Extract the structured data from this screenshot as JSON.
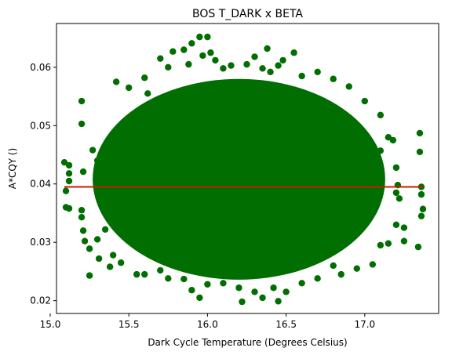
{
  "chart_data": {
    "type": "scatter",
    "title": "BOS T_DARK x BETA",
    "xlabel": "Dark Cycle Temperature (Degrees Celsius)",
    "ylabel": "A*CQY ()",
    "xlim": [
      15.04,
      17.47
    ],
    "ylim": [
      0.0178,
      0.0675
    ],
    "x_ticks": [
      15.0,
      15.5,
      16.0,
      16.5,
      17.0
    ],
    "x_tick_labels": [
      "15.0",
      "15.5",
      "16.0",
      "16.5",
      "17.0"
    ],
    "y_ticks": [
      0.02,
      0.03,
      0.04,
      0.05,
      0.06
    ],
    "y_tick_labels": [
      "0.02",
      "0.03",
      "0.04",
      "0.05",
      "0.06"
    ],
    "grid": false,
    "series": [
      {
        "kind": "points",
        "color": "#006e00",
        "points": [
          [
            15.09,
            0.0437
          ],
          [
            15.1,
            0.0388
          ],
          [
            15.1,
            0.036
          ],
          [
            15.12,
            0.0358
          ],
          [
            15.12,
            0.0432
          ],
          [
            15.12,
            0.0418
          ],
          [
            15.12,
            0.0405
          ],
          [
            15.2,
            0.0542
          ],
          [
            15.2,
            0.0503
          ],
          [
            15.21,
            0.0421
          ],
          [
            15.2,
            0.0355
          ],
          [
            15.2,
            0.0343
          ],
          [
            15.21,
            0.032
          ],
          [
            15.22,
            0.0302
          ],
          [
            15.25,
            0.0289
          ],
          [
            15.25,
            0.0243
          ],
          [
            15.27,
            0.0458
          ],
          [
            15.3,
            0.044
          ],
          [
            15.31,
            0.0272
          ],
          [
            15.35,
            0.0465
          ],
          [
            15.38,
            0.0258
          ],
          [
            15.42,
            0.0575
          ],
          [
            15.45,
            0.0485
          ],
          [
            15.5,
            0.0565
          ],
          [
            15.55,
            0.0245
          ],
          [
            15.6,
            0.0582
          ],
          [
            15.7,
            0.0615
          ],
          [
            15.78,
            0.0627
          ],
          [
            15.85,
            0.063
          ],
          [
            15.88,
            0.0605
          ],
          [
            15.9,
            0.0641
          ],
          [
            15.95,
            0.0652
          ],
          [
            15.97,
            0.062
          ],
          [
            16.0,
            0.0652
          ],
          [
            16.02,
            0.0625
          ],
          [
            16.05,
            0.0612
          ],
          [
            16.1,
            0.0598
          ],
          [
            15.85,
            0.0237
          ],
          [
            15.9,
            0.0218
          ],
          [
            15.95,
            0.0205
          ],
          [
            16.0,
            0.0228
          ],
          [
            16.1,
            0.023
          ],
          [
            16.2,
            0.0222
          ],
          [
            16.22,
            0.0198
          ],
          [
            16.3,
            0.0215
          ],
          [
            16.35,
            0.0205
          ],
          [
            16.42,
            0.0222
          ],
          [
            16.45,
            0.0199
          ],
          [
            16.5,
            0.0215
          ],
          [
            16.6,
            0.023
          ],
          [
            16.3,
            0.0618
          ],
          [
            16.35,
            0.0598
          ],
          [
            16.38,
            0.0632
          ],
          [
            16.45,
            0.0603
          ],
          [
            16.48,
            0.0612
          ],
          [
            16.55,
            0.0625
          ],
          [
            16.6,
            0.0585
          ],
          [
            16.7,
            0.0592
          ],
          [
            16.8,
            0.058
          ],
          [
            16.9,
            0.0567
          ],
          [
            17.0,
            0.0542
          ],
          [
            17.1,
            0.0518
          ],
          [
            17.15,
            0.048
          ],
          [
            17.18,
            0.0475
          ],
          [
            17.2,
            0.0428
          ],
          [
            17.2,
            0.0385
          ],
          [
            17.21,
            0.0398
          ],
          [
            17.22,
            0.0375
          ],
          [
            17.2,
            0.033
          ],
          [
            17.15,
            0.0298
          ],
          [
            17.1,
            0.0295
          ],
          [
            17.05,
            0.0262
          ],
          [
            16.95,
            0.0255
          ],
          [
            16.85,
            0.0245
          ],
          [
            17.35,
            0.0487
          ],
          [
            17.35,
            0.0455
          ],
          [
            17.36,
            0.0395
          ],
          [
            17.36,
            0.0382
          ],
          [
            17.37,
            0.0357
          ],
          [
            17.36,
            0.0345
          ],
          [
            17.34,
            0.0292
          ],
          [
            17.25,
            0.0302
          ],
          [
            17.25,
            0.0325
          ],
          [
            17.1,
            0.0457
          ],
          [
            15.3,
            0.0305
          ],
          [
            15.35,
            0.0322
          ],
          [
            15.4,
            0.0278
          ],
          [
            15.45,
            0.0265
          ],
          [
            15.6,
            0.0245
          ],
          [
            15.7,
            0.0252
          ],
          [
            15.75,
            0.0238
          ],
          [
            15.8,
            0.0545
          ],
          [
            15.62,
            0.0555
          ],
          [
            16.8,
            0.026
          ],
          [
            16.7,
            0.0238
          ],
          [
            16.4,
            0.0592
          ],
          [
            16.25,
            0.0605
          ],
          [
            16.15,
            0.0603
          ],
          [
            15.75,
            0.06
          ]
        ]
      },
      {
        "kind": "cloud",
        "color": "#006e00",
        "center": [
          16.2,
          0.0408
        ],
        "semi_axes": [
          0.93,
          0.0172
        ]
      },
      {
        "kind": "line",
        "color": "#c81e00",
        "x": [
          15.09,
          17.37
        ],
        "y": [
          0.0395,
          0.0395
        ]
      }
    ]
  }
}
